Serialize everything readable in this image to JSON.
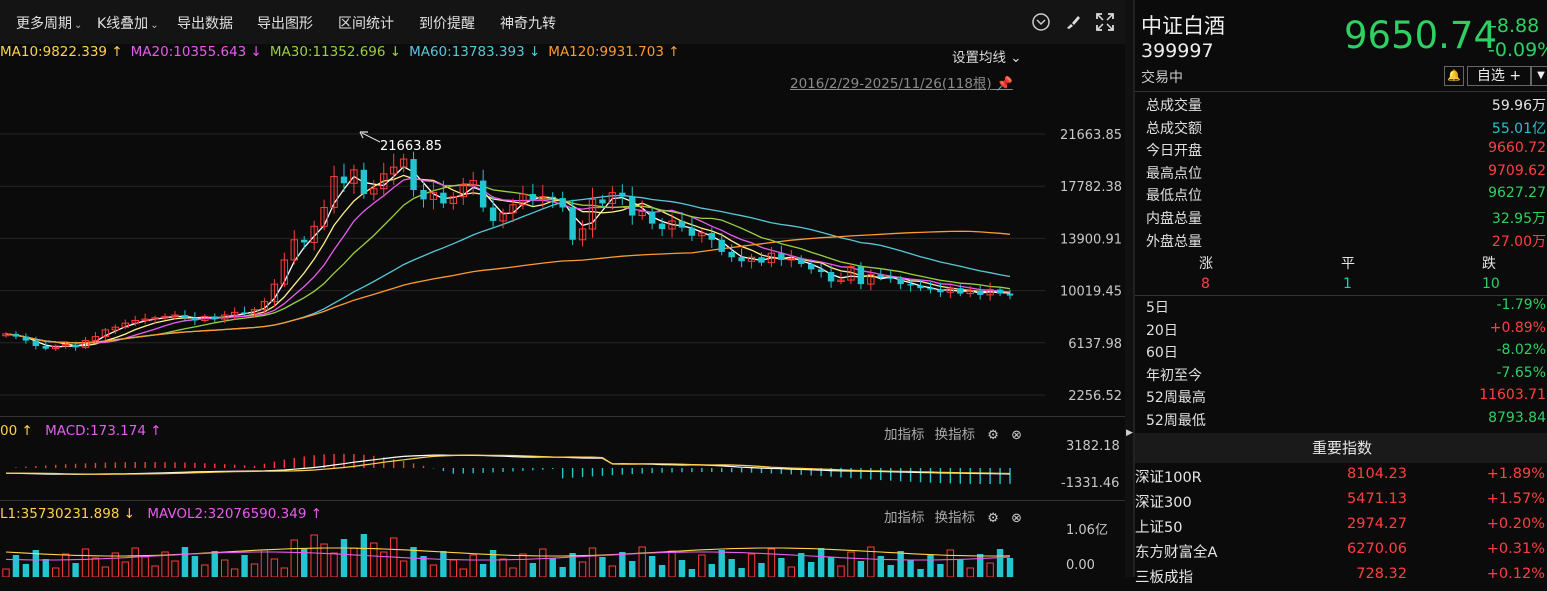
{
  "toolbar": {
    "items": [
      "更多周期",
      "K线叠加",
      "导出数据",
      "导出图形",
      "区间统计",
      "到价提醒",
      "神奇九转"
    ]
  },
  "ma": {
    "ma10": "MA10:9822.339 ↑",
    "ma20": "MA20:10355.643 ↓",
    "ma30": "MA30:11352.696 ↓",
    "ma60": "MA60:13783.393 ↓",
    "ma120": "MA120:9931.703 ↑",
    "set_label": "设置均线",
    "date_range": "2016/2/29-2025/11/26(118根)"
  },
  "colors": {
    "up": "#ff3b3b",
    "down": "#22c5d0",
    "ma10": "#ffffff",
    "ma20": "#e85cf0",
    "ma30": "#9ad03c",
    "ma60": "#56c8d8",
    "ma120": "#ff9a2e"
  },
  "price_axis": [
    "21663.85",
    "17782.38",
    "13900.91",
    "10019.45",
    "6137.98",
    "2256.52"
  ],
  "peak_label": "21663.85",
  "macd": {
    "head_a": "00 ↑",
    "head_b": "MACD:173.174 ↑",
    "axis_top": "3182.18",
    "axis_bottom": "-1331.46"
  },
  "vol": {
    "head_a": "L1:35730231.898 ↓",
    "head_b": "MAVOL2:32076590.349 ↑",
    "axis_top": "1.06亿",
    "axis_bottom": "0.00"
  },
  "sub_buttons": {
    "add": "加指标",
    "switch": "换指标"
  },
  "quote": {
    "name": "中证白酒",
    "code": "399997",
    "status": "交易中",
    "price": "9650.74",
    "change": "-8.88",
    "change_pct": "-0.09%",
    "fav": "自选 +"
  },
  "stats": [
    {
      "label": "总成交量",
      "value": "59.96万",
      "cls": "white"
    },
    {
      "label": "总成交额",
      "value": "55.01亿",
      "cls": "cyan"
    },
    {
      "label": "今日开盘",
      "value": "9660.72",
      "cls": "red"
    },
    {
      "label": "最高点位",
      "value": "9709.62",
      "cls": "red"
    },
    {
      "label": "最低点位",
      "value": "9627.27",
      "cls": "green"
    },
    {
      "label": "内盘总量",
      "value": "32.95万",
      "cls": "green"
    },
    {
      "label": "外盘总量",
      "value": "27.00万",
      "cls": "red"
    }
  ],
  "breadth": {
    "up_label": "涨",
    "flat_label": "平",
    "down_label": "跌",
    "up": "8",
    "flat": "1",
    "down": "10"
  },
  "periods": [
    {
      "label": "5日",
      "value": "-1.79%",
      "cls": "green"
    },
    {
      "label": "20日",
      "value": "+0.89%",
      "cls": "red"
    },
    {
      "label": "60日",
      "value": "-8.02%",
      "cls": "green"
    },
    {
      "label": "年初至今",
      "value": "-7.65%",
      "cls": "green"
    },
    {
      "label": "52周最高",
      "value": "11603.71",
      "cls": "red"
    },
    {
      "label": "52周最低",
      "value": "8793.84",
      "cls": "green"
    }
  ],
  "important_title": "重要指数",
  "indices": [
    {
      "name": "深证100R",
      "price": "8104.23",
      "chg": "+1.89%"
    },
    {
      "name": "深证300",
      "price": "5471.13",
      "chg": "+1.57%"
    },
    {
      "name": "上证50",
      "price": "2974.27",
      "chg": "+0.20%"
    },
    {
      "name": "东方财富全A",
      "price": "6270.06",
      "chg": "+0.31%"
    },
    {
      "name": "三板成指",
      "price": "728.32",
      "chg": "+0.12%"
    }
  ]
}
